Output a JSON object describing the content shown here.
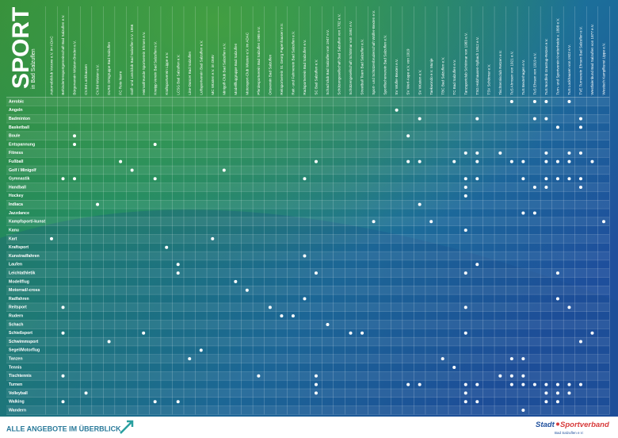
{
  "header": {
    "title": "SPORT",
    "subtitle": "in Bad Salzuflen"
  },
  "footer": {
    "text": "ALLE ANGEBOTE IM ÜBERBLICK",
    "logo_a": "Stadt",
    "logo_b": "Sportverband",
    "logo_sub": "Bad Salzuflen e.V."
  },
  "matrix": {
    "columns": [
      "Automobilclub Verzwe e.V. im ADAC",
      "Behindertensportgemeinschaft Bad Salzuflen e.V.",
      "Bürgerverein Wüsten-Breden e.V.",
      "CVJM Lockhausen",
      "CVJM Wüsten e.V.",
      "DLRG Ortsgruppe Bad Salzuflen",
      "FC Rote Narre",
      "Golf- und Landclub Bad Salzuflen e.V. 1956",
      "Heimatfreunde Sportverein Ehrsen e.V.",
      "Kneipp-Verein Bad Salzuflen e.V.",
      "Kraftsportverein Lippe e.V.",
      "LCSG Bad Salzuflen e.V.",
      "Line-Dancer Bad Salzuflen",
      "Luftsportverein Bad Salzuflen e.V.",
      "MC Wüsten e.V. im DMV",
      "Minigolf-Club Bad Salzuflen e.V.",
      "Modellfluggruppe Bad Salzuflen",
      "Motorsport-Club Wüsten e.V. im ADAC",
      "Pferdesportverein Bad Salzuflen 1985 e.V.",
      "Ortsverein Bad Salzuflen",
      "Reitsportverein St. Georg Papenhausen e.V.",
      "Reit- und Fahrverein Bad Salzuflen e.V.",
      "Radsportverein Bad Salzuflen e.V.",
      "SC Bad Salzuflen e.V.",
      "Schachclub Bad Salzuflen von 1947 e.V.",
      "Schützengesellschaft Bad Salzuflen von 1702 e.V.",
      "Schützengesellschaft Schötmar von 1592 e.V.",
      "Streetball Team Bad Salzuflen e.V.",
      "Sport- und Schützenbruderschaft Wülfer-Bexten e.V.",
      "Sportfischerverein Bad Salzuflen e.V.",
      "SV Wülfer-Bexten e.V.",
      "SV Werl-Aspe e.V. von 1919",
      "SV Wüsten e.V.",
      "Taekwondo e.V. Munje",
      "TBC Bad Salzuflen e.V.",
      "TC Bad Salzuflen e.V.",
      "Tanzsportclub Schötmar von 1983 e.V.",
      "TSG Holzhausen-Sylbach 1912 e.V.",
      "TSV Schötmar e.V.",
      "Tischtennisclub Retzen e.V.",
      "TuS Ahmsen von 1921 e.V.",
      "TuS Bexterhagen e.V.",
      "TuS Ehrsen von 1919 e.V.",
      "TuS Nordfeld Grastrup-Retzen e.V.",
      "Turn- und Sportverein Knetterheide v. 1898 e.V.",
      "TuS Lockhausen von 1922 e.V.",
      "TVE Turnverein Ehrsen Bad Salzuflen e.V.",
      "Westfalenbund Bad Salzuflen von 1877 e.V.",
      "Westisch Kampfkunst Lippe e.V."
    ],
    "rows": [
      {
        "label": "Aerobic",
        "offers": [
          40,
          42,
          43,
          45
        ]
      },
      {
        "label": "Angeln",
        "offers": [
          30
        ]
      },
      {
        "label": "Badminton",
        "offers": [
          32,
          37,
          42,
          43,
          46
        ]
      },
      {
        "label": "Basketball",
        "offers": [
          44,
          46
        ]
      },
      {
        "label": "Boule",
        "offers": [
          2,
          31
        ]
      },
      {
        "label": "Entspannung",
        "offers": [
          2,
          9
        ]
      },
      {
        "label": "Fitness",
        "offers": [
          36,
          37,
          39,
          43,
          45,
          46
        ]
      },
      {
        "label": "Fußball",
        "offers": [
          6,
          23,
          31,
          32,
          35,
          37,
          40,
          41,
          43,
          44,
          45,
          47
        ]
      },
      {
        "label": "Golf / Minigolf",
        "offers": [
          7,
          15
        ]
      },
      {
        "label": "Gymnastik",
        "offers": [
          1,
          2,
          9,
          22,
          36,
          37,
          41,
          43,
          44,
          45,
          46
        ]
      },
      {
        "label": "Handball",
        "offers": [
          36,
          42,
          43,
          46
        ]
      },
      {
        "label": "Hockey",
        "offers": [
          36
        ]
      },
      {
        "label": "Indiaca",
        "offers": [
          4,
          32
        ]
      },
      {
        "label": "Jazzdance",
        "offers": [
          41,
          42
        ]
      },
      {
        "label": "Kampfsport/-kunst",
        "offers": [
          28,
          33,
          48
        ]
      },
      {
        "label": "Kanu",
        "offers": [
          36
        ]
      },
      {
        "label": "Kart",
        "offers": [
          0,
          14
        ]
      },
      {
        "label": "Kraftsport",
        "offers": [
          10
        ]
      },
      {
        "label": "Kunstradfahren",
        "offers": [
          22
        ]
      },
      {
        "label": "Laufen",
        "offers": [
          11,
          37
        ]
      },
      {
        "label": "Leichtathletik",
        "offers": [
          11,
          23,
          36,
          44
        ]
      },
      {
        "label": "Modellflug",
        "offers": [
          16
        ]
      },
      {
        "label": "Motorrad/-cross",
        "offers": [
          17
        ]
      },
      {
        "label": "Radfahren",
        "offers": [
          22,
          44
        ]
      },
      {
        "label": "Reitsport",
        "offers": [
          1,
          19,
          36,
          45
        ]
      },
      {
        "label": "Rudern",
        "offers": [
          20,
          21
        ]
      },
      {
        "label": "Schach",
        "offers": [
          24
        ]
      },
      {
        "label": "Schießsport",
        "offers": [
          1,
          8,
          26,
          27,
          36,
          47
        ]
      },
      {
        "label": "Schwimmsport",
        "offers": [
          5,
          46
        ]
      },
      {
        "label": "Segel/Motorflug",
        "offers": [
          13
        ]
      },
      {
        "label": "Tanzen",
        "offers": [
          12,
          34,
          40,
          41
        ]
      },
      {
        "label": "Tennis",
        "offers": [
          35
        ]
      },
      {
        "label": "Tischtennis",
        "offers": [
          1,
          18,
          23,
          39,
          40,
          41
        ]
      },
      {
        "label": "Turnen",
        "offers": [
          23,
          31,
          32,
          36,
          37,
          40,
          41,
          42,
          43,
          44,
          45,
          46
        ]
      },
      {
        "label": "Volleyball",
        "offers": [
          3,
          23,
          36,
          43,
          44,
          45
        ]
      },
      {
        "label": "Walking",
        "offers": [
          1,
          9,
          11,
          36,
          37,
          43,
          44
        ]
      },
      {
        "label": "Wandern",
        "offers": [
          41
        ]
      }
    ]
  }
}
